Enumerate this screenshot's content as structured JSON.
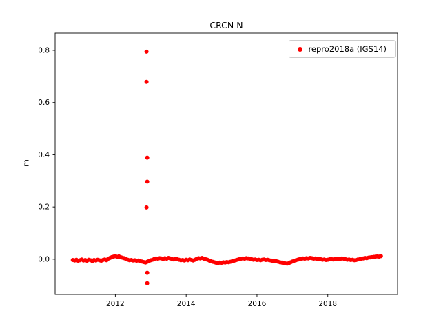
{
  "chart_data": {
    "type": "scatter",
    "title": "CRCN N",
    "xlabel": "",
    "ylabel": "m",
    "grid": false,
    "xlim": [
      2010.3,
      2019.97
    ],
    "ylim": [
      -0.135,
      0.866
    ],
    "xticks": {
      "values": [
        2012,
        2014,
        2016,
        2018
      ],
      "labels": [
        "2012",
        "2014",
        "2016",
        "2018"
      ]
    },
    "yticks": {
      "values": [
        0.0,
        0.2,
        0.4,
        0.6,
        0.8
      ],
      "labels": [
        "0.0",
        "0.2",
        "0.4",
        "0.6",
        "0.8"
      ]
    },
    "legend": {
      "position": "upper right",
      "entries": [
        {
          "label": "repro2018a (IGS14)",
          "color": "#ff0000",
          "marker": "circle"
        }
      ]
    },
    "series": [
      {
        "name": "repro2018a (IGS14)",
        "color": "#ff0000",
        "marker_size": 3,
        "baseline": {
          "x_start": 2010.8,
          "x_step": 0.05,
          "y": [
            -0.003,
            -0.005,
            -0.002,
            -0.006,
            -0.004,
            -0.001,
            -0.005,
            -0.003,
            -0.006,
            -0.002,
            -0.004,
            -0.007,
            -0.003,
            -0.005,
            -0.002,
            -0.004,
            -0.006,
            -0.003,
            -0.001,
            -0.004,
            0.002,
            0.005,
            0.008,
            0.01,
            0.012,
            0.009,
            0.011,
            0.008,
            0.006,
            0.004,
            0.001,
            -0.002,
            -0.004,
            -0.003,
            -0.005,
            -0.004,
            -0.006,
            -0.005,
            -0.007,
            -0.009,
            -0.011,
            -0.013,
            -0.01,
            -0.007,
            -0.004,
            -0.002,
            0.001,
            0.003,
            0.002,
            0.004,
            0.003,
            0.001,
            0.004,
            0.002,
            0.005,
            0.003,
            0.001,
            -0.001,
            0.002,
            0.0,
            -0.002,
            -0.004,
            -0.003,
            -0.005,
            -0.002,
            -0.004,
            -0.001,
            -0.003,
            -0.005,
            -0.002,
            0.002,
            0.004,
            0.003,
            0.005,
            0.002,
            0.0,
            -0.002,
            -0.005,
            -0.008,
            -0.01,
            -0.012,
            -0.014,
            -0.015,
            -0.013,
            -0.014,
            -0.012,
            -0.013,
            -0.011,
            -0.012,
            -0.01,
            -0.008,
            -0.006,
            -0.004,
            -0.002,
            0.0,
            0.002,
            0.003,
            0.002,
            0.004,
            0.003,
            0.002,
            0.0,
            -0.002,
            -0.001,
            -0.003,
            -0.002,
            -0.004,
            -0.002,
            -0.001,
            -0.003,
            -0.002,
            -0.004,
            -0.005,
            -0.007,
            -0.006,
            -0.008,
            -0.01,
            -0.012,
            -0.013,
            -0.015,
            -0.016,
            -0.017,
            -0.015,
            -0.012,
            -0.009,
            -0.006,
            -0.004,
            -0.002,
            0.0,
            0.002,
            0.003,
            0.002,
            0.004,
            0.003,
            0.005,
            0.004,
            0.002,
            0.003,
            0.001,
            0.002,
            0.0,
            -0.002,
            -0.001,
            -0.003,
            -0.002,
            0.0,
            0.001,
            -0.001,
            0.002,
            0.0,
            0.002,
            0.001,
            0.003,
            0.002,
            0.0,
            -0.002,
            -0.001,
            -0.003,
            -0.002,
            -0.004,
            -0.003,
            -0.001,
            0.0,
            0.002,
            0.003,
            0.005,
            0.004,
            0.006,
            0.007,
            0.008,
            0.009,
            0.01,
            0.011,
            0.01,
            0.012
          ]
        },
        "outliers": [
          [
            2012.88,
            0.795
          ],
          [
            2012.88,
            0.679
          ],
          [
            2012.9,
            0.389
          ],
          [
            2012.9,
            0.297
          ],
          [
            2012.88,
            0.198
          ],
          [
            2012.9,
            -0.052
          ],
          [
            2012.9,
            -0.092
          ]
        ]
      }
    ]
  }
}
